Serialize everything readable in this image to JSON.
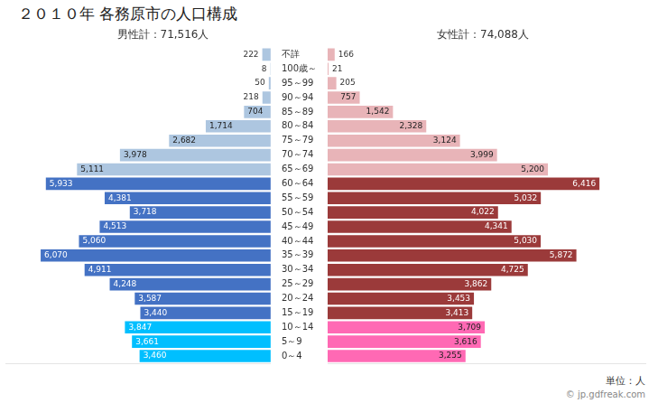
{
  "chart_data": [
    {
      "type": "bar",
      "orientation": "horizontal",
      "title": "２０１０年 各務原市の人口構成",
      "subtitle": "男性計：71,516人",
      "categories": [
        "不詳",
        "100歳～",
        "95～99",
        "90～94",
        "85～89",
        "80～84",
        "75～79",
        "70～74",
        "65～69",
        "60～64",
        "55～59",
        "50～54",
        "45～49",
        "40～44",
        "35～39",
        "30～34",
        "25～29",
        "20～24",
        "15～19",
        "10～14",
        "5～9",
        "0～4"
      ],
      "values": [
        222,
        8,
        50,
        218,
        704,
        1714,
        2682,
        3978,
        5111,
        5933,
        4381,
        3718,
        4513,
        5060,
        6070,
        4911,
        4248,
        3587,
        3440,
        3847,
        3661,
        3460
      ],
      "value_labels": [
        "222",
        "8",
        "50",
        "218",
        "704",
        "1,714",
        "2,682",
        "3,978",
        "5,111",
        "5,933",
        "4,381",
        "3,718",
        "4,513",
        "5,060",
        "6,070",
        "4,911",
        "4,248",
        "3,587",
        "3,440",
        "3,847",
        "3,661",
        "3,460"
      ],
      "colors": [
        "#ADC6E0",
        "#ADC6E0",
        "#ADC6E0",
        "#ADC6E0",
        "#ADC6E0",
        "#ADC6E0",
        "#ADC6E0",
        "#ADC6E0",
        "#ADC6E0",
        "#4472C4",
        "#4472C4",
        "#4472C4",
        "#4472C4",
        "#4472C4",
        "#4472C4",
        "#4472C4",
        "#4472C4",
        "#4472C4",
        "#4472C4",
        "#00BFFF",
        "#00BFFF",
        "#00BFFF"
      ],
      "xlim": [
        7000,
        0
      ],
      "data_labels": true,
      "tick_labels": "y",
      "grid": false
    },
    {
      "type": "bar",
      "orientation": "horizontal",
      "subtitle": "女性計：74,088人",
      "categories": [
        "不詳",
        "100歳～",
        "95～99",
        "90～94",
        "85～89",
        "80～84",
        "75～79",
        "70～74",
        "65～69",
        "60～64",
        "55～59",
        "50～54",
        "45～49",
        "40～44",
        "35～39",
        "30～34",
        "25～29",
        "20～24",
        "15～19",
        "10～14",
        "5～9",
        "0～4"
      ],
      "values": [
        166,
        21,
        205,
        757,
        1542,
        2328,
        3124,
        3999,
        5200,
        6416,
        5032,
        4022,
        4341,
        5030,
        5872,
        4725,
        3862,
        3453,
        3413,
        3709,
        3616,
        3255
      ],
      "value_labels": [
        "166",
        "21",
        "205",
        "757",
        "1,542",
        "2,328",
        "3,124",
        "3,999",
        "5,200",
        "6,416",
        "5,032",
        "4,022",
        "4,341",
        "5,030",
        "5,872",
        "4,725",
        "3,862",
        "3,453",
        "3,413",
        "3,709",
        "3,616",
        "3,255"
      ],
      "colors": [
        "#E8B4B8",
        "#E8B4B8",
        "#E8B4B8",
        "#E8B4B8",
        "#E8B4B8",
        "#E8B4B8",
        "#E8B4B8",
        "#E8B4B8",
        "#E8B4B8",
        "#9B3A3A",
        "#9B3A3A",
        "#9B3A3A",
        "#9B3A3A",
        "#9B3A3A",
        "#9B3A3A",
        "#9B3A3A",
        "#9B3A3A",
        "#9B3A3A",
        "#9B3A3A",
        "#FF69B4",
        "#FF69B4",
        "#FF69B4"
      ],
      "xlim": [
        0,
        7500
      ],
      "data_labels": true,
      "tick_labels": false,
      "grid": false,
      "annotations": [
        "単位：人",
        "© jp.gdfreak.com"
      ]
    }
  ]
}
